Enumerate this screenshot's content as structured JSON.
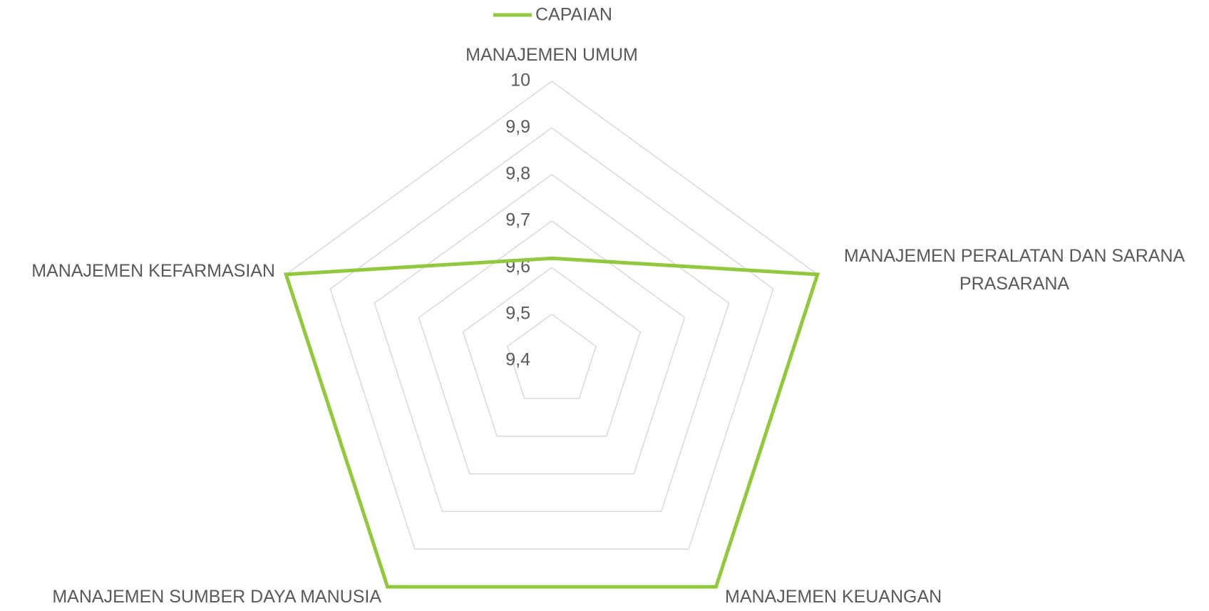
{
  "chart_data": {
    "type": "radar",
    "categories": [
      "MANAJEMEN UMUM",
      "MANAJEMEN PERALATAN DAN SARANA PRASARANA",
      "MANAJEMEN KEUANGAN",
      "MANAJEMEN SUMBER DAYA MANUSIA",
      "MANAJEMEN KEFARMASIAN"
    ],
    "series": [
      {
        "name": "CAPAIAN",
        "color": "#92c83e",
        "values": [
          9.62,
          10,
          10,
          10,
          10
        ]
      }
    ],
    "ylim": [
      9.4,
      10
    ],
    "yticks": [
      {
        "value": 9.4,
        "label": "9,4"
      },
      {
        "value": 9.5,
        "label": "9,5"
      },
      {
        "value": 9.6,
        "label": "9,6"
      },
      {
        "value": 9.7,
        "label": "9,7"
      },
      {
        "value": 9.8,
        "label": "9,8"
      },
      {
        "value": 9.9,
        "label": "9,9"
      },
      10
    ],
    "grid": true,
    "legend": "top"
  }
}
